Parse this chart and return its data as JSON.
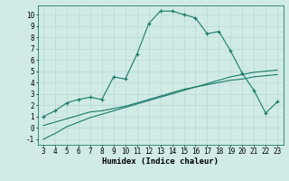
{
  "x": [
    3,
    4,
    5,
    6,
    7,
    8,
    9,
    10,
    11,
    12,
    13,
    14,
    15,
    16,
    17,
    18,
    19,
    20,
    21,
    22,
    23
  ],
  "y_main": [
    1.0,
    1.5,
    2.2,
    2.5,
    2.7,
    2.5,
    4.5,
    4.3,
    6.5,
    9.2,
    10.3,
    10.3,
    10.0,
    9.7,
    8.3,
    8.5,
    6.8,
    4.8,
    3.3,
    1.3,
    2.3
  ],
  "y_line1": [
    -1.0,
    -0.5,
    0.1,
    0.5,
    0.9,
    1.2,
    1.5,
    1.8,
    2.1,
    2.4,
    2.7,
    3.0,
    3.3,
    3.6,
    3.9,
    4.2,
    4.5,
    4.7,
    4.9,
    5.0,
    5.1
  ],
  "y_line2": [
    0.2,
    0.5,
    0.8,
    1.1,
    1.4,
    1.5,
    1.7,
    1.9,
    2.2,
    2.5,
    2.8,
    3.1,
    3.4,
    3.6,
    3.8,
    4.0,
    4.2,
    4.3,
    4.5,
    4.6,
    4.7
  ],
  "line_color": "#1a7a6a",
  "bg_color": "#d0ebe6",
  "grid_color": "#b8d8d2",
  "xlabel": "Humidex (Indice chaleur)",
  "ylim": [
    -1.5,
    10.8
  ],
  "xlim": [
    2.5,
    23.5
  ],
  "yticks": [
    -1,
    0,
    1,
    2,
    3,
    4,
    5,
    6,
    7,
    8,
    9,
    10
  ],
  "xticks": [
    3,
    4,
    5,
    6,
    7,
    8,
    9,
    10,
    11,
    12,
    13,
    14,
    15,
    16,
    17,
    18,
    19,
    20,
    21,
    22,
    23
  ],
  "tick_fontsize": 5.5,
  "xlabel_fontsize": 6.5
}
